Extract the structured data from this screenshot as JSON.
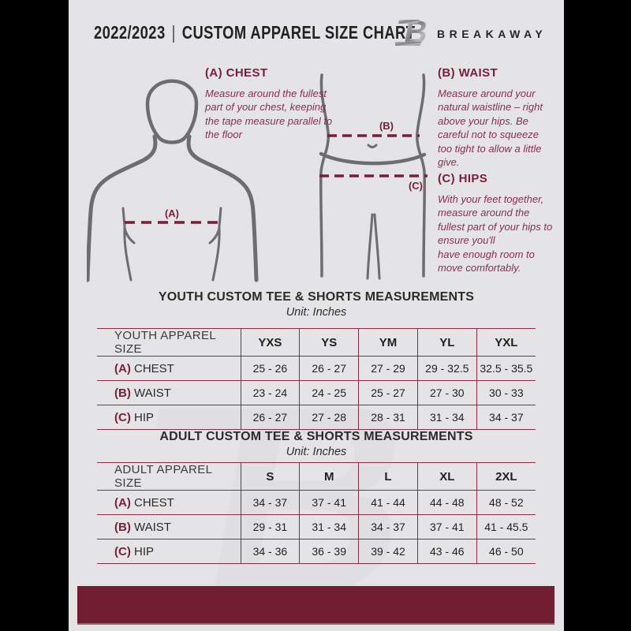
{
  "page": {
    "year_range": "2022/2023",
    "separator": "|",
    "title": "CUSTOM APPAREL SIZE CHART",
    "brand": "BREAKAWAY",
    "logo_letter": "B"
  },
  "measurements": {
    "chest": {
      "label": "(A)",
      "title": "(A) CHEST",
      "description": "Measure around the fullest part of your chest, keeping the tape measure parallel to the floor"
    },
    "waist": {
      "label": "(B)",
      "title": "(B) WAIST",
      "description": "Measure around your natural waistline – right above your hips. Be careful not to squeeze too tight to allow a little give."
    },
    "hips": {
      "label": "(C)",
      "title": "(C) HIPS",
      "description": "With your feet together, measure around the fullest part of your hips to ensure you'll\nhave enough room to move comfortably."
    }
  },
  "youth_table": {
    "title": "YOUTH CUSTOM TEE & SHORTS MEASUREMENTS",
    "unit": "Unit: Inches",
    "size_col_header": "YOUTH APPAREL SIZE",
    "sizes": [
      "YXS",
      "YS",
      "YM",
      "YL",
      "YXL"
    ],
    "rows": [
      {
        "prefix": "(A)",
        "label": "CHEST",
        "values": [
          "25 - 26",
          "26 - 27",
          "27 - 29",
          "29 - 32.5",
          "32.5 - 35.5"
        ]
      },
      {
        "prefix": "(B)",
        "label": "WAIST",
        "values": [
          "23 - 24",
          "24 - 25",
          "25 - 27",
          "27 - 30",
          "30 - 33"
        ]
      },
      {
        "prefix": "(C)",
        "label": "HIP",
        "values": [
          "26 - 27",
          "27 - 28",
          "28 - 31",
          "31 - 34",
          "34 - 37"
        ]
      }
    ]
  },
  "adult_table": {
    "title": "ADULT CUSTOM TEE & SHORTS MEASUREMENTS",
    "unit": "Unit: Inches",
    "size_col_header": "ADULT APPAREL SIZE",
    "sizes": [
      "S",
      "M",
      "L",
      "XL",
      "2XL"
    ],
    "rows": [
      {
        "prefix": "(A)",
        "label": "CHEST",
        "values": [
          "34 - 37",
          "37 - 41",
          "41 - 44",
          "44 - 48",
          "48 - 52"
        ]
      },
      {
        "prefix": "(B)",
        "label": "WAIST",
        "values": [
          "29 - 31",
          "31 - 34",
          "34 - 37",
          "37 - 41",
          "41 - 45.5"
        ]
      },
      {
        "prefix": "(C)",
        "label": "HIP",
        "values": [
          "34 - 36",
          "36 - 39",
          "39 - 42",
          "43 - 46",
          "46 - 50"
        ]
      }
    ]
  },
  "colors": {
    "maroon": "#711E33",
    "accent": "#7A1D38",
    "table_line": "#8A2C44",
    "figure_gray": "#6D6D70",
    "background": "#E4E4E6"
  }
}
